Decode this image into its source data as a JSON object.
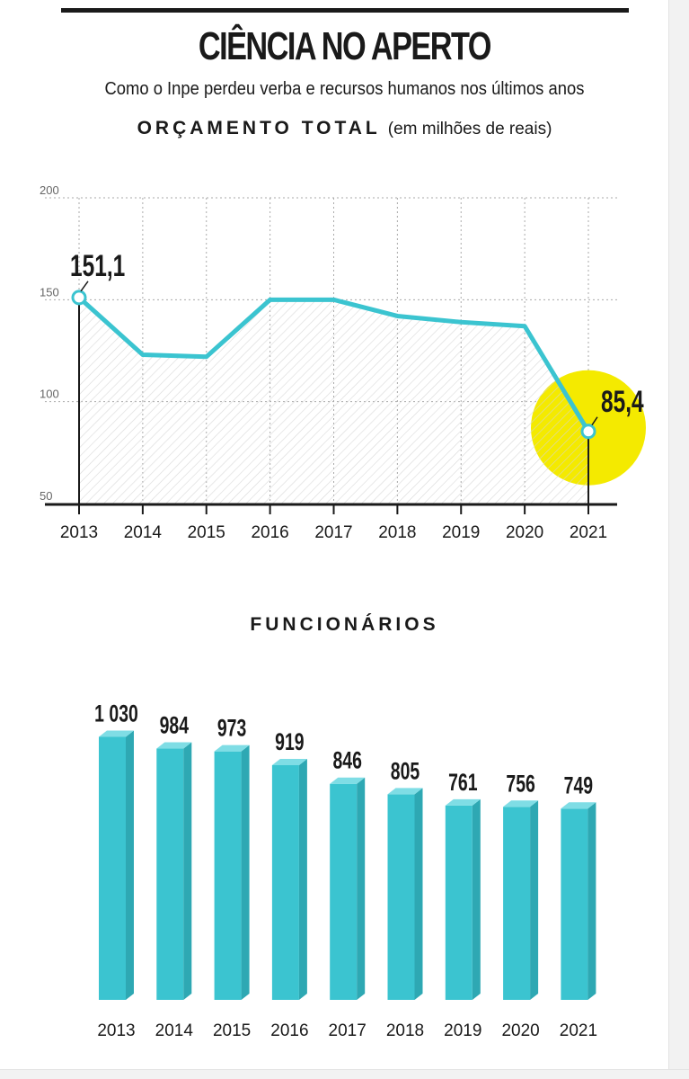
{
  "header": {
    "title": "CIÊNCIA NO APERTO",
    "subtitle": "Como o Inpe perdeu verba e recursos humanos nos últimos anos"
  },
  "section_budget": {
    "heading": "ORÇAMENTO TOTAL",
    "unit": "(em milhões de reais)"
  },
  "section_staff": {
    "heading": "FUNCIONÁRIOS"
  },
  "colors": {
    "series": "#3bc4d0",
    "highlight": "#f4ea00",
    "axis": "#1a1a1a",
    "grid": "#aaaaaa"
  },
  "chart_data": [
    {
      "type": "line",
      "title": "ORÇAMENTO TOTAL",
      "x": [
        "2013",
        "2014",
        "2015",
        "2016",
        "2017",
        "2018",
        "2019",
        "2020",
        "2021"
      ],
      "values": [
        151.1,
        123,
        122,
        150,
        150,
        142,
        139,
        137,
        85.4
      ],
      "ylim": [
        50,
        200
      ],
      "yticks": [
        "50",
        "100",
        "150",
        "200"
      ],
      "labels": [
        {
          "index": 0,
          "text": "151,1"
        },
        {
          "index": 8,
          "text": "85,4"
        }
      ],
      "grid": true,
      "highlight_index": 8
    },
    {
      "type": "bar",
      "title": "FUNCIONÁRIOS",
      "categories": [
        "2013",
        "2014",
        "2015",
        "2016",
        "2017",
        "2018",
        "2019",
        "2020",
        "2021"
      ],
      "values": [
        1030,
        984,
        973,
        919,
        846,
        805,
        761,
        756,
        749
      ],
      "value_labels": [
        "1 030",
        "984",
        "973",
        "919",
        "846",
        "805",
        "761",
        "756",
        "749"
      ]
    }
  ]
}
